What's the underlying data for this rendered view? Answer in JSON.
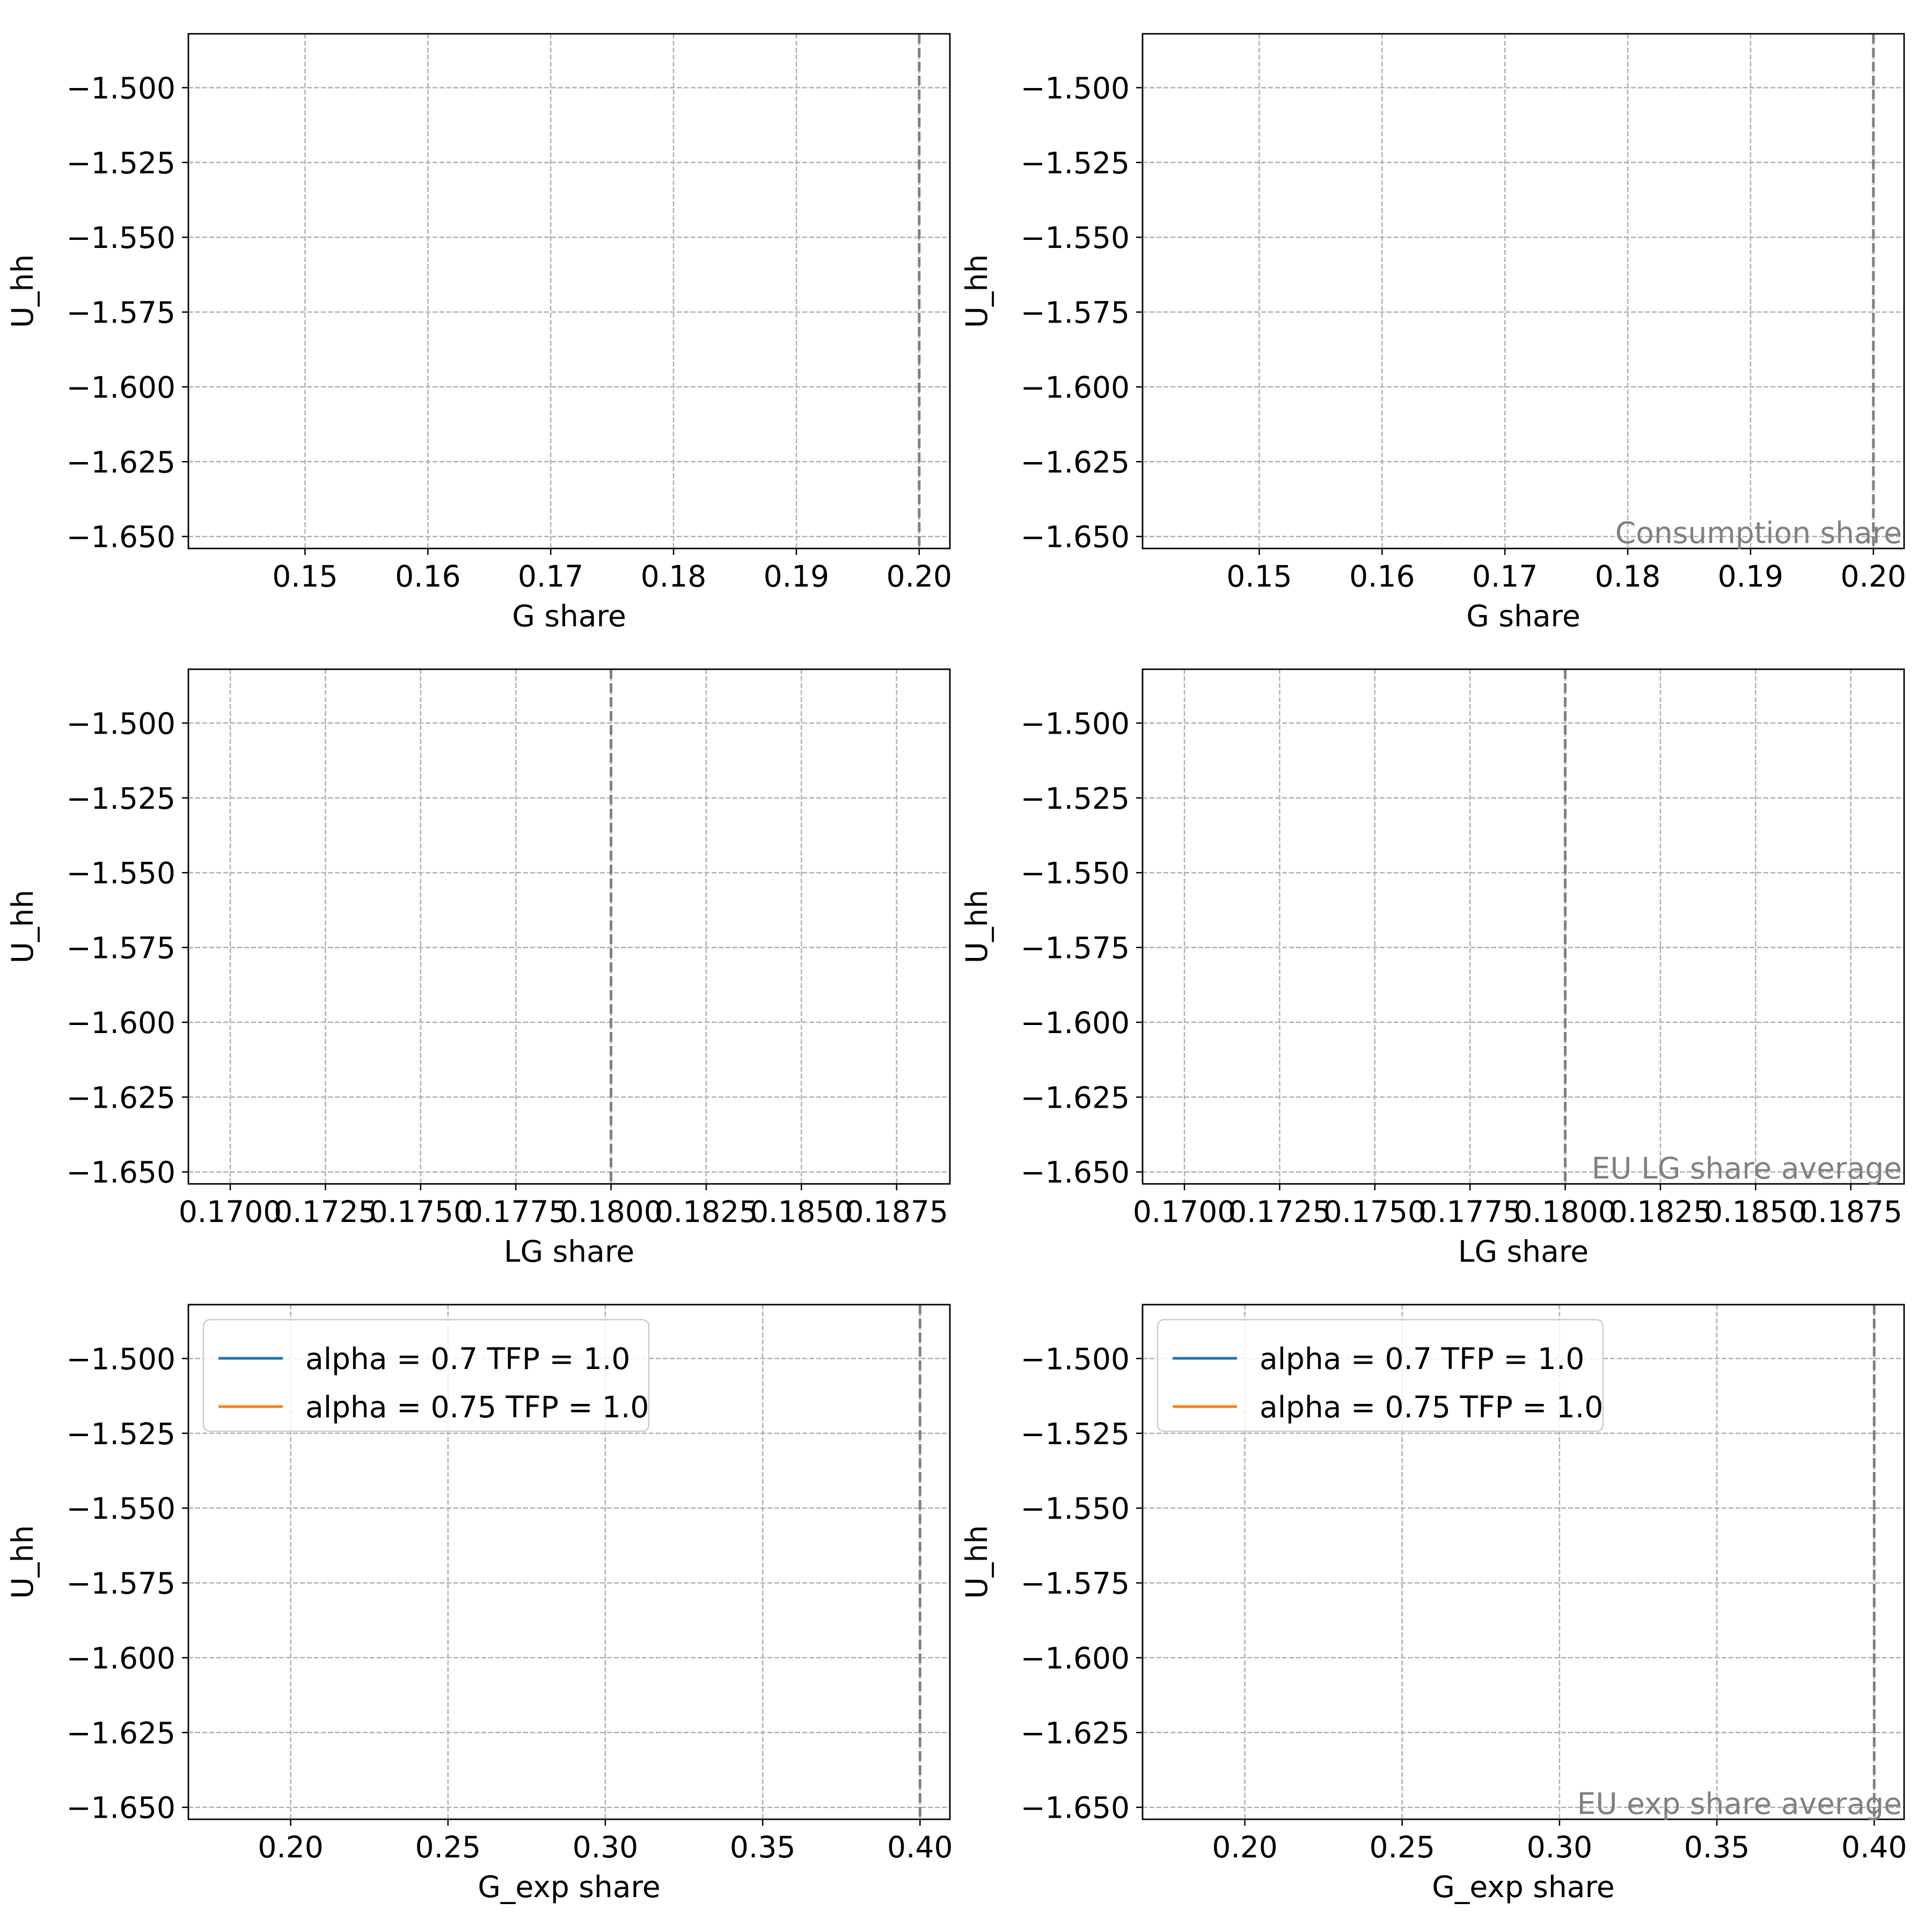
{
  "colors": {
    "series": [
      "#1f77b4",
      "#ff7f0e"
    ],
    "grid": "#b0b0b0",
    "refline": "#808080",
    "annotation": "#808080",
    "axes": "#000000"
  },
  "chart_data": [
    {
      "type": "line",
      "xlabel": "G share",
      "ylabel": "U_hh",
      "xlim": [
        0.1405,
        0.2025
      ],
      "ylim": [
        -1.654,
        -1.482
      ],
      "xticks": [
        0.15,
        0.16,
        0.17,
        0.18,
        0.19,
        0.2
      ],
      "xtick_labels": [
        "0.15",
        "0.16",
        "0.17",
        "0.18",
        "0.19",
        "0.20"
      ],
      "yticks": [
        -1.5,
        -1.525,
        -1.55,
        -1.575,
        -1.6,
        -1.625,
        -1.65
      ],
      "ytick_labels": [
        "−1.500",
        "−1.525",
        "−1.550",
        "−1.575",
        "−1.600",
        "−1.625",
        "−1.650"
      ],
      "grid": true,
      "reference_line": {
        "x": 0.2,
        "style": "dashed"
      },
      "annotation": "",
      "series": [],
      "legend": null
    },
    {
      "type": "line",
      "xlabel": "G share",
      "ylabel": "U_hh",
      "xlim": [
        0.1405,
        0.2025
      ],
      "ylim": [
        -1.654,
        -1.482
      ],
      "xticks": [
        0.15,
        0.16,
        0.17,
        0.18,
        0.19,
        0.2
      ],
      "xtick_labels": [
        "0.15",
        "0.16",
        "0.17",
        "0.18",
        "0.19",
        "0.20"
      ],
      "yticks": [
        -1.5,
        -1.525,
        -1.55,
        -1.575,
        -1.6,
        -1.625,
        -1.65
      ],
      "ytick_labels": [
        "−1.500",
        "−1.525",
        "−1.550",
        "−1.575",
        "−1.600",
        "−1.625",
        "−1.650"
      ],
      "grid": true,
      "reference_line": {
        "x": 0.2,
        "style": "dashed"
      },
      "annotation": "Consumption share",
      "series": [],
      "legend": null
    },
    {
      "type": "line",
      "xlabel": "LG share",
      "ylabel": "U_hh",
      "xlim": [
        0.1689,
        0.1889
      ],
      "ylim": [
        -1.654,
        -1.482
      ],
      "xticks": [
        0.17,
        0.1725,
        0.175,
        0.1775,
        0.18,
        0.1825,
        0.185,
        0.1875
      ],
      "xtick_labels": [
        "0.1700",
        "0.1725",
        "0.1750",
        "0.1775",
        "0.1800",
        "0.1825",
        "0.1850",
        "0.1875"
      ],
      "yticks": [
        -1.5,
        -1.525,
        -1.55,
        -1.575,
        -1.6,
        -1.625,
        -1.65
      ],
      "ytick_labels": [
        "−1.500",
        "−1.525",
        "−1.550",
        "−1.575",
        "−1.600",
        "−1.625",
        "−1.650"
      ],
      "grid": true,
      "reference_line": {
        "x": 0.18,
        "style": "dashed"
      },
      "annotation": "",
      "series": [],
      "legend": null
    },
    {
      "type": "line",
      "xlabel": "LG share",
      "ylabel": "U_hh",
      "xlim": [
        0.1689,
        0.1889
      ],
      "ylim": [
        -1.654,
        -1.482
      ],
      "xticks": [
        0.17,
        0.1725,
        0.175,
        0.1775,
        0.18,
        0.1825,
        0.185,
        0.1875
      ],
      "xtick_labels": [
        "0.1700",
        "0.1725",
        "0.1750",
        "0.1775",
        "0.1800",
        "0.1825",
        "0.1850",
        "0.1875"
      ],
      "yticks": [
        -1.5,
        -1.525,
        -1.55,
        -1.575,
        -1.6,
        -1.625,
        -1.65
      ],
      "ytick_labels": [
        "−1.500",
        "−1.525",
        "−1.550",
        "−1.575",
        "−1.600",
        "−1.625",
        "−1.650"
      ],
      "grid": true,
      "reference_line": {
        "x": 0.18,
        "style": "dashed"
      },
      "annotation": "EU LG share average",
      "series": [],
      "legend": null
    },
    {
      "type": "line",
      "xlabel": "G_exp share",
      "ylabel": "U_hh",
      "xlim": [
        0.1675,
        0.4095
      ],
      "ylim": [
        -1.654,
        -1.482
      ],
      "xticks": [
        0.2,
        0.25,
        0.3,
        0.35,
        0.4
      ],
      "xtick_labels": [
        "0.20",
        "0.25",
        "0.30",
        "0.35",
        "0.40"
      ],
      "yticks": [
        -1.5,
        -1.525,
        -1.55,
        -1.575,
        -1.6,
        -1.625,
        -1.65
      ],
      "ytick_labels": [
        "−1.500",
        "−1.525",
        "−1.550",
        "−1.575",
        "−1.600",
        "−1.625",
        "−1.650"
      ],
      "grid": true,
      "reference_line": {
        "x": 0.4,
        "style": "dashed"
      },
      "annotation": "",
      "series": [
        {
          "name": "alpha = 0.7 TFP = 1.0",
          "x": [],
          "values": []
        },
        {
          "name": "alpha = 0.75 TFP = 1.0",
          "x": [],
          "values": []
        }
      ],
      "legend": "upper left"
    },
    {
      "type": "line",
      "xlabel": "G_exp share",
      "ylabel": "U_hh",
      "xlim": [
        0.1675,
        0.4095
      ],
      "ylim": [
        -1.654,
        -1.482
      ],
      "xticks": [
        0.2,
        0.25,
        0.3,
        0.35,
        0.4
      ],
      "xtick_labels": [
        "0.20",
        "0.25",
        "0.30",
        "0.35",
        "0.40"
      ],
      "yticks": [
        -1.5,
        -1.525,
        -1.55,
        -1.575,
        -1.6,
        -1.625,
        -1.65
      ],
      "ytick_labels": [
        "−1.500",
        "−1.525",
        "−1.550",
        "−1.575",
        "−1.600",
        "−1.625",
        "−1.650"
      ],
      "grid": true,
      "reference_line": {
        "x": 0.4,
        "style": "dashed"
      },
      "annotation": "EU exp share average",
      "series": [
        {
          "name": "alpha = 0.7 TFP = 1.0",
          "x": [],
          "values": []
        },
        {
          "name": "alpha = 0.75 TFP = 1.0",
          "x": [],
          "values": []
        }
      ],
      "legend": "upper left"
    }
  ]
}
